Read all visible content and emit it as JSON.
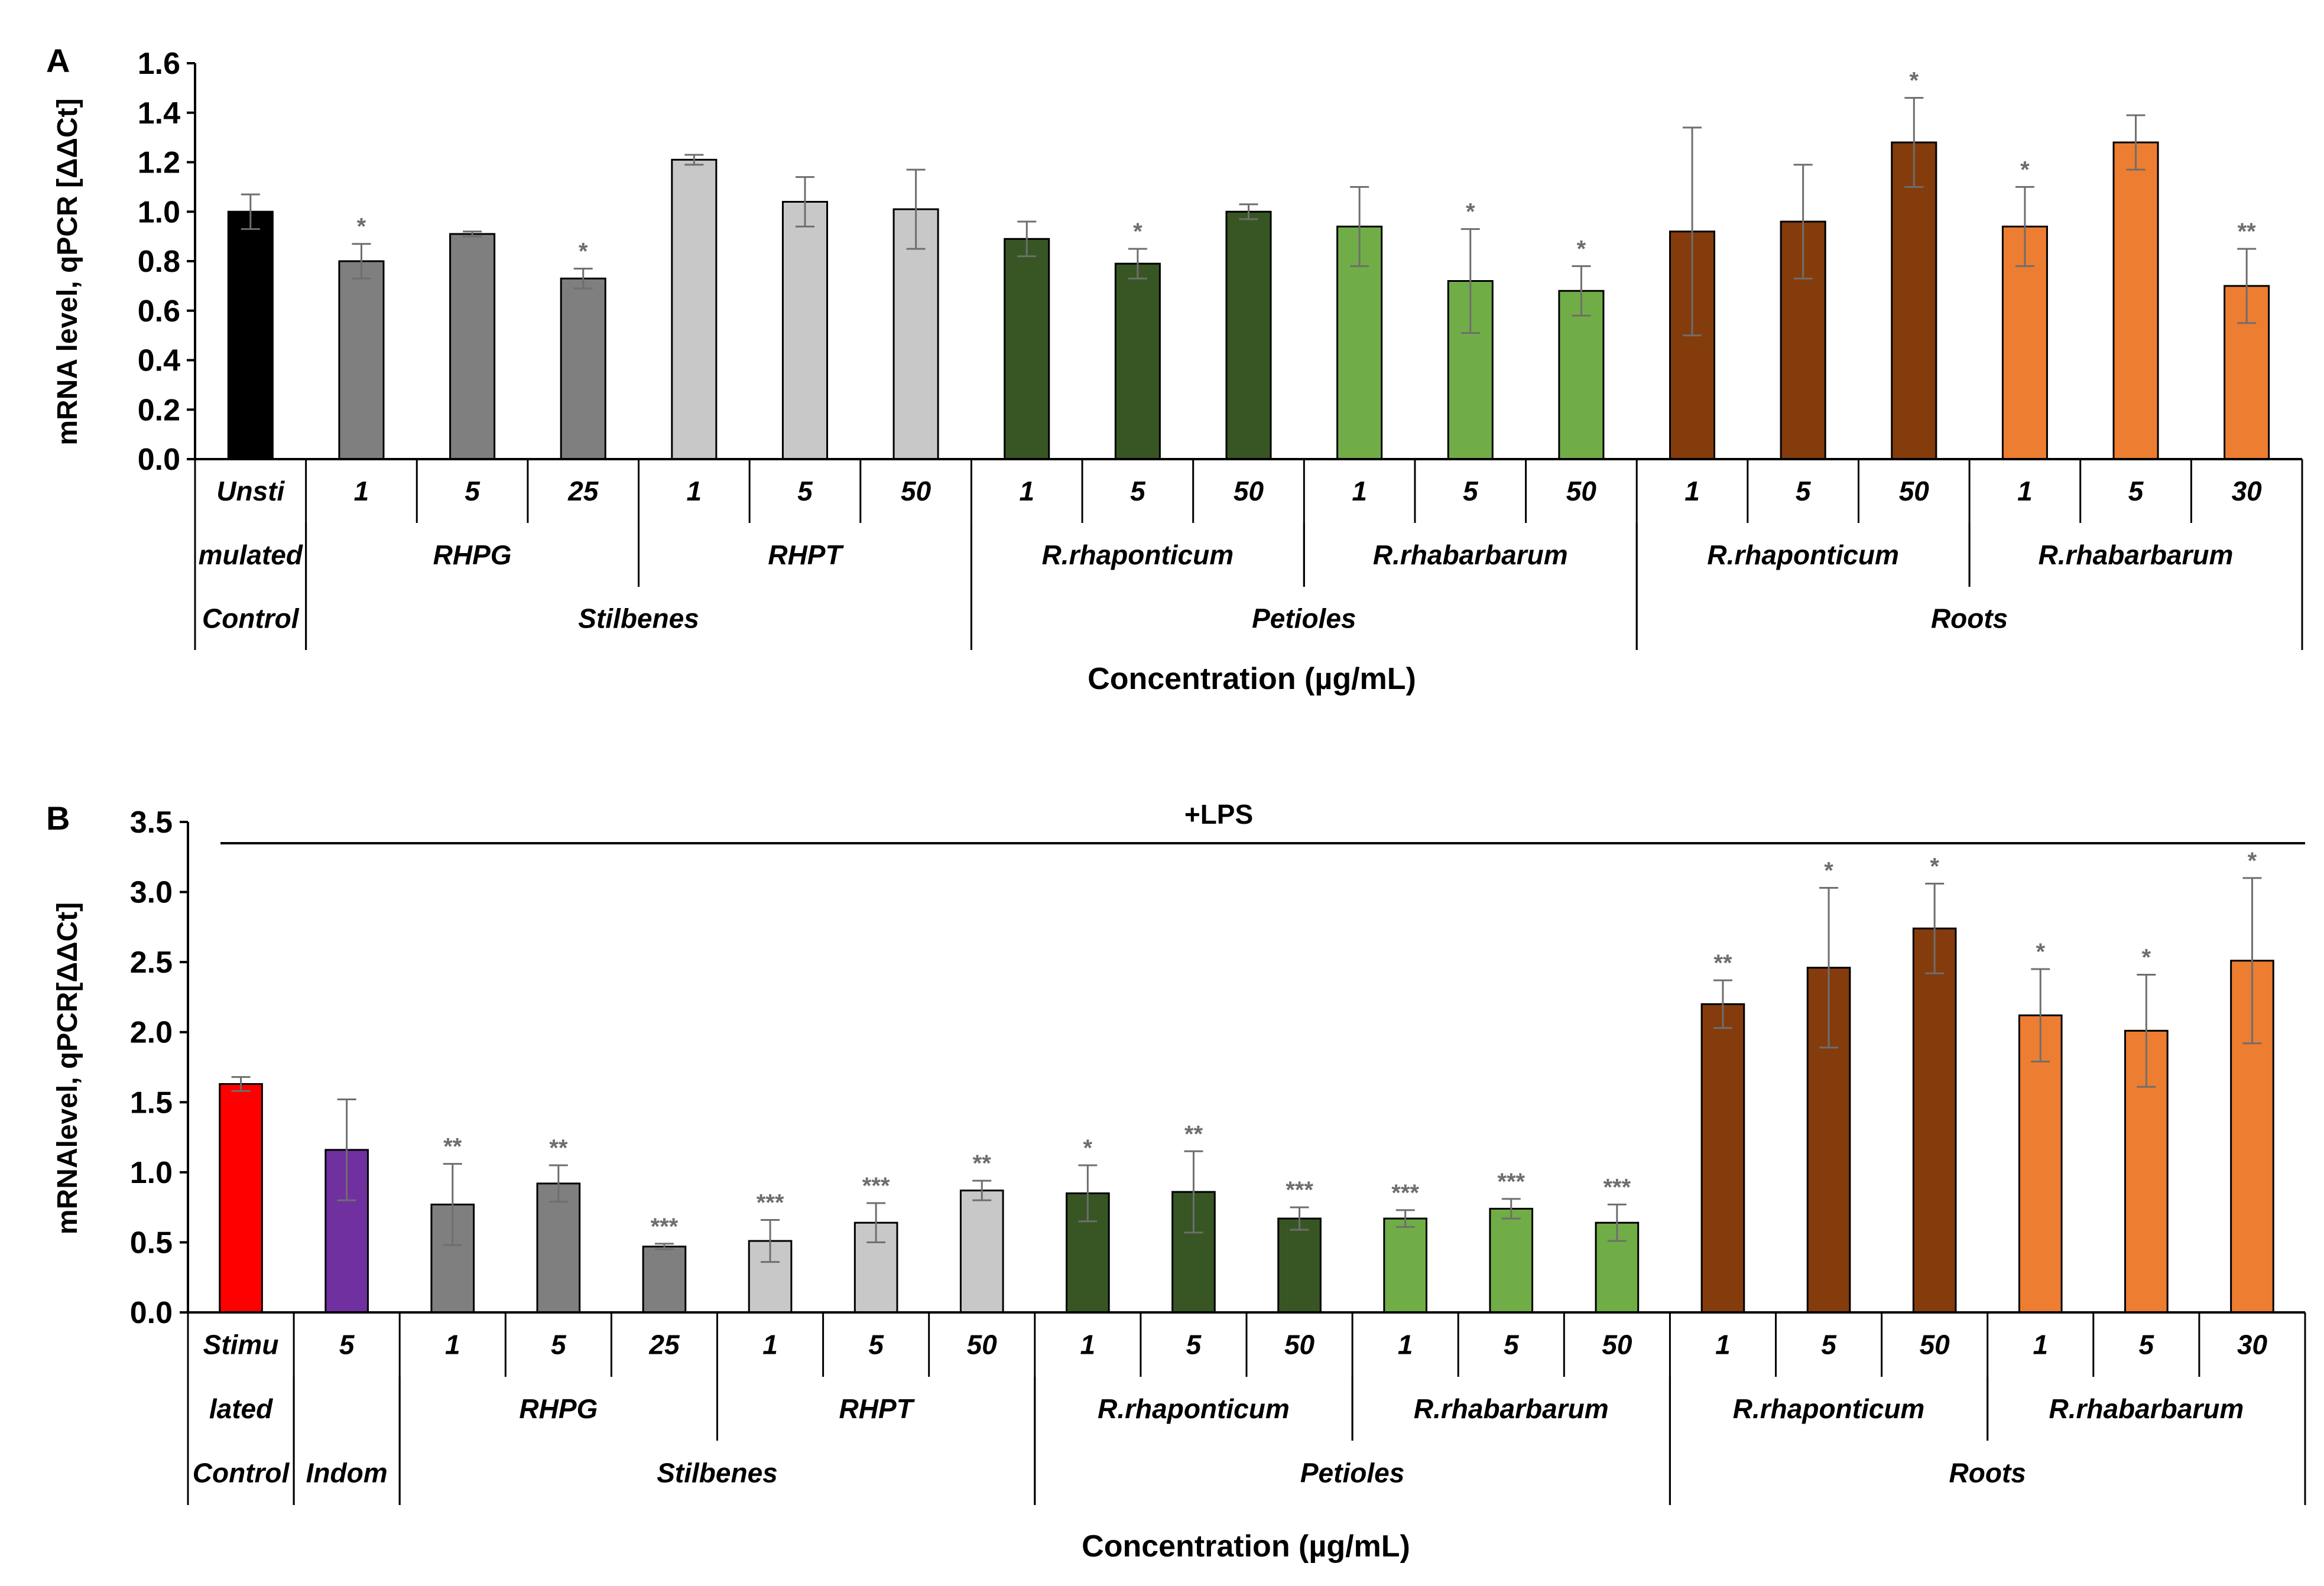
{
  "colors": {
    "black": "#000000",
    "gray_dark": "#7f7f7f",
    "gray_light": "#c8c8c8",
    "green_dark": "#375623",
    "green_light": "#70ad47",
    "brown": "#843c0c",
    "orange": "#ed7d31",
    "red": "#ff0000",
    "purple": "#7030a0"
  },
  "chart_data": [
    {
      "panel": "A",
      "type": "bar",
      "ylabel": "mRNA level, qPCR [ΔΔCt]",
      "xlabel": "Concentration (µg/mL)",
      "ylim": [
        0,
        1.6
      ],
      "yticks": [
        "0.0",
        "0.2",
        "0.4",
        "0.6",
        "0.8",
        "1.0",
        "1.2",
        "1.4",
        "1.6"
      ],
      "ytick_values": [
        0,
        0.2,
        0.4,
        0.6,
        0.8,
        1.0,
        1.2,
        1.4,
        1.6
      ],
      "categories": [
        "Unsti",
        "1",
        "5",
        "25",
        "1",
        "5",
        "50",
        "1",
        "5",
        "50",
        "1",
        "5",
        "50",
        "1",
        "5",
        "50",
        "1",
        "5",
        "30"
      ],
      "values": [
        1.0,
        0.8,
        0.91,
        0.73,
        1.21,
        1.04,
        1.01,
        0.89,
        0.79,
        1.0,
        0.94,
        0.72,
        0.68,
        0.92,
        0.96,
        1.28,
        0.94,
        1.28,
        0.7
      ],
      "errors": [
        0.07,
        0.07,
        0.01,
        0.04,
        0.02,
        0.1,
        0.16,
        0.07,
        0.06,
        0.03,
        0.16,
        0.21,
        0.1,
        0.42,
        0.23,
        0.18,
        0.16,
        0.11,
        0.15
      ],
      "significance": [
        "",
        "*",
        "",
        "*",
        "",
        "",
        "",
        "",
        "*",
        "",
        "",
        "*",
        "*",
        "",
        "",
        "*",
        "*",
        "",
        "**"
      ],
      "bar_colors": [
        "black",
        "gray_dark",
        "gray_dark",
        "gray_dark",
        "gray_light",
        "gray_light",
        "gray_light",
        "green_dark",
        "green_dark",
        "green_dark",
        "green_light",
        "green_light",
        "green_light",
        "brown",
        "brown",
        "brown",
        "orange",
        "orange",
        "orange"
      ],
      "row2": [
        {
          "label": "mulated",
          "start": 0,
          "span": 1
        },
        {
          "label": "RHPG",
          "start": 1,
          "span": 3
        },
        {
          "label": "RHPT",
          "start": 4,
          "span": 3
        },
        {
          "label": "R.rhaponticum",
          "start": 7,
          "span": 3
        },
        {
          "label": "R.rhabarbarum",
          "start": 10,
          "span": 3
        },
        {
          "label": "R.rhaponticum",
          "start": 13,
          "span": 3
        },
        {
          "label": "R.rhabarbarum",
          "start": 16,
          "span": 3
        }
      ],
      "row3": [
        {
          "label": "Control",
          "start": 0,
          "span": 1
        },
        {
          "label": "Stilbenes",
          "start": 1,
          "span": 6
        },
        {
          "label": "Petioles",
          "start": 7,
          "span": 6
        },
        {
          "label": "Roots",
          "start": 13,
          "span": 6
        }
      ]
    },
    {
      "panel": "B",
      "type": "bar",
      "ylabel": "mRNAlevel, qPCR[ΔΔCt]",
      "xlabel": "Concentration (µg/mL)",
      "annotation": "+LPS",
      "ylim": [
        0,
        3.5
      ],
      "yticks": [
        "0.0",
        "0.5",
        "1.0",
        "1.5",
        "2.0",
        "2.5",
        "3.0",
        "3.5"
      ],
      "ytick_values": [
        0,
        0.5,
        1.0,
        1.5,
        2.0,
        2.5,
        3.0,
        3.5
      ],
      "categories": [
        "Stimu",
        "5",
        "1",
        "5",
        "25",
        "1",
        "5",
        "50",
        "1",
        "5",
        "50",
        "1",
        "5",
        "50",
        "1",
        "5",
        "50",
        "1",
        "5",
        "30"
      ],
      "values": [
        1.63,
        1.16,
        0.77,
        0.92,
        0.47,
        0.51,
        0.64,
        0.87,
        0.85,
        0.86,
        0.67,
        0.67,
        0.74,
        0.64,
        2.2,
        2.46,
        2.74,
        2.12,
        2.01,
        2.51
      ],
      "errors": [
        0.05,
        0.36,
        0.29,
        0.13,
        0.02,
        0.15,
        0.14,
        0.07,
        0.2,
        0.29,
        0.08,
        0.06,
        0.07,
        0.13,
        0.17,
        0.57,
        0.32,
        0.33,
        0.4,
        0.59
      ],
      "significance": [
        "",
        "",
        "**",
        "**",
        "***",
        "***",
        "***",
        "**",
        "*",
        "**",
        "***",
        "***",
        "***",
        "***",
        "**",
        "*",
        "*",
        "*",
        "*",
        "*"
      ],
      "bar_colors": [
        "red",
        "purple",
        "gray_dark",
        "gray_dark",
        "gray_dark",
        "gray_light",
        "gray_light",
        "gray_light",
        "green_dark",
        "green_dark",
        "green_dark",
        "green_light",
        "green_light",
        "green_light",
        "brown",
        "brown",
        "brown",
        "orange",
        "orange",
        "orange"
      ],
      "row2": [
        {
          "label": "lated",
          "start": 0,
          "span": 1
        },
        {
          "label": "",
          "start": 1,
          "span": 1
        },
        {
          "label": "RHPG",
          "start": 2,
          "span": 3
        },
        {
          "label": "RHPT",
          "start": 5,
          "span": 3
        },
        {
          "label": "R.rhaponticum",
          "start": 8,
          "span": 3
        },
        {
          "label": "R.rhabarbarum",
          "start": 11,
          "span": 3
        },
        {
          "label": "R.rhaponticum",
          "start": 14,
          "span": 3
        },
        {
          "label": "R.rhabarbarum",
          "start": 17,
          "span": 3
        }
      ],
      "row3": [
        {
          "label": "Control",
          "start": 0,
          "span": 1
        },
        {
          "label": "Indom",
          "start": 1,
          "span": 1
        },
        {
          "label": "Stilbenes",
          "start": 2,
          "span": 6
        },
        {
          "label": "Petioles",
          "start": 8,
          "span": 6
        },
        {
          "label": "Roots",
          "start": 14,
          "span": 6
        }
      ]
    }
  ]
}
